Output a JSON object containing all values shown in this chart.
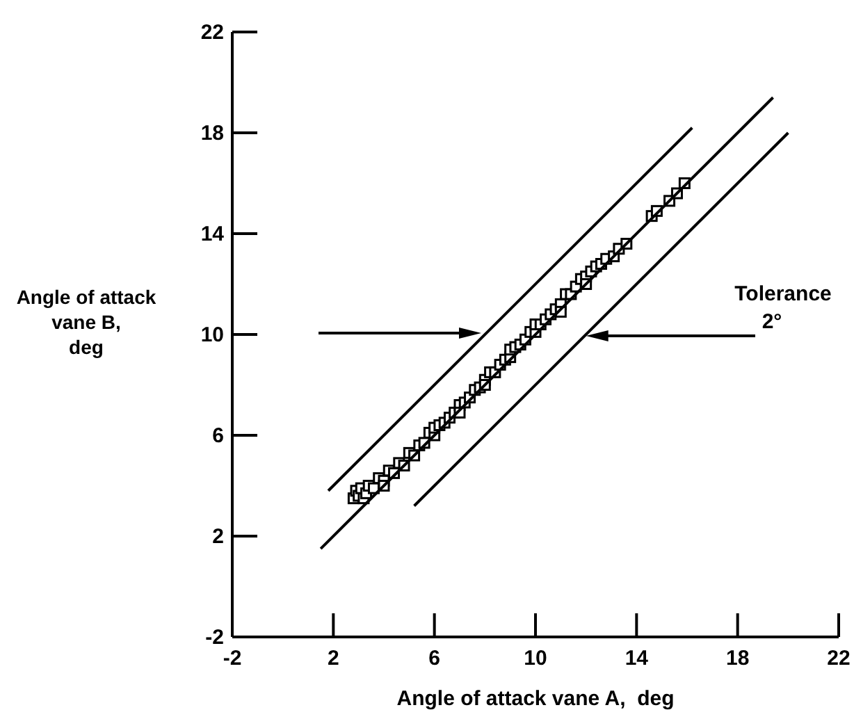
{
  "chart_data": {
    "type": "scatter",
    "xlabel": "Angle of attack vane A,  deg",
    "ylabel": "Angle of attack\nvane B,\ndeg",
    "xlim": [
      -2,
      22
    ],
    "ylim": [
      -2,
      22
    ],
    "xticks": [
      -2,
      2,
      6,
      10,
      14,
      18,
      22
    ],
    "yticks": [
      -2,
      2,
      6,
      10,
      14,
      18,
      22
    ],
    "grid": false,
    "annotations": [
      {
        "text": "Tolerance\n2°",
        "x": 12,
        "y": 10
      }
    ],
    "series": [
      {
        "color": "#000000",
        "marker": "square",
        "x": [
          2.8,
          2.9,
          3.0,
          3.1,
          3.2,
          3.3,
          3.4,
          3.6,
          3.8,
          4.0,
          4.0,
          4.2,
          4.4,
          4.6,
          4.8,
          5.0,
          5.2,
          5.4,
          5.6,
          5.8,
          6.0,
          6.0,
          6.2,
          6.4,
          6.6,
          6.8,
          7.0,
          7.0,
          7.2,
          7.4,
          7.6,
          7.8,
          8.0,
          8.0,
          8.2,
          8.4,
          8.6,
          8.8,
          9.0,
          9.0,
          9.2,
          9.4,
          9.6,
          9.8,
          10.0,
          10.0,
          10.2,
          10.4,
          10.6,
          10.8,
          11.0,
          11.0,
          11.2,
          11.4,
          11.6,
          11.8,
          12.0,
          12.0,
          12.2,
          12.4,
          12.6,
          12.8,
          13.1,
          13.3,
          13.6,
          14.6,
          14.8,
          15.3,
          15.6,
          15.9
        ],
        "values": [
          3.5,
          3.8,
          3.6,
          3.9,
          3.5,
          3.7,
          4.0,
          3.9,
          4.3,
          4.2,
          4.0,
          4.6,
          4.5,
          4.9,
          4.8,
          5.3,
          5.2,
          5.6,
          5.7,
          6.1,
          6.0,
          6.3,
          6.4,
          6.5,
          6.7,
          6.9,
          7.2,
          6.9,
          7.3,
          7.5,
          7.8,
          7.9,
          8.2,
          8.0,
          8.5,
          8.5,
          8.8,
          9.0,
          9.1,
          9.4,
          9.5,
          9.6,
          9.8,
          10.1,
          10.1,
          10.4,
          10.4,
          10.6,
          10.8,
          11.0,
          11.2,
          10.9,
          11.6,
          11.6,
          11.9,
          12.2,
          12.3,
          12.0,
          12.5,
          12.7,
          12.8,
          13.0,
          13.1,
          13.4,
          13.6,
          14.7,
          14.9,
          15.3,
          15.6,
          16.0
        ]
      },
      {
        "type": "line",
        "color": "#000000",
        "line_style": "solid",
        "x": [
          1.8,
          16.2
        ],
        "values": [
          3.8,
          18.2
        ]
      },
      {
        "type": "line",
        "color": "#000000",
        "line_style": "solid",
        "x": [
          1.5,
          19.4
        ],
        "values": [
          1.5,
          19.4
        ]
      },
      {
        "type": "line",
        "color": "#000000",
        "line_style": "solid",
        "x": [
          5.2,
          20.0
        ],
        "values": [
          3.2,
          18.0
        ]
      }
    ]
  }
}
